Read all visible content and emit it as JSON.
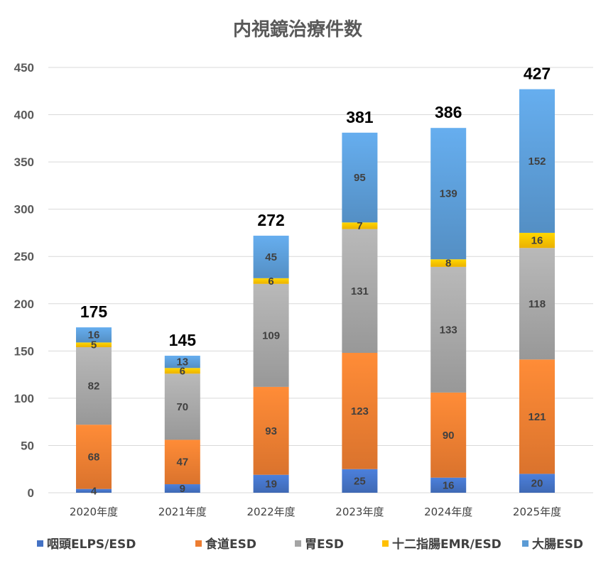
{
  "chart_data": {
    "type": "bar",
    "stacked": true,
    "title": "内視鏡治療件数",
    "categories": [
      "2020年度",
      "2021年度",
      "2022年度",
      "2023年度",
      "2024年度",
      "2025年度"
    ],
    "series": [
      {
        "name": "咽頭ELPS/ESD",
        "color": "#4472C4",
        "values": [
          4,
          9,
          19,
          25,
          16,
          20
        ]
      },
      {
        "name": "食道ESD",
        "color": "#ED7D31",
        "values": [
          68,
          47,
          93,
          123,
          90,
          121
        ]
      },
      {
        "name": "胃ESD",
        "color": "#A5A5A5",
        "values": [
          82,
          70,
          109,
          131,
          133,
          118
        ]
      },
      {
        "name": "十二指腸EMR/ESD",
        "color": "#FFC000",
        "values": [
          5,
          6,
          6,
          7,
          8,
          16
        ]
      },
      {
        "name": "大腸ESD",
        "color": "#5B9BD5",
        "values": [
          16,
          13,
          45,
          95,
          139,
          152
        ]
      }
    ],
    "totals": [
      175,
      145,
      272,
      381,
      386,
      427
    ],
    "ylim": [
      0,
      450
    ],
    "yticks": [
      0,
      50,
      100,
      150,
      200,
      250,
      300,
      350,
      400,
      450
    ],
    "grid": true,
    "legend_position": "bottom"
  }
}
